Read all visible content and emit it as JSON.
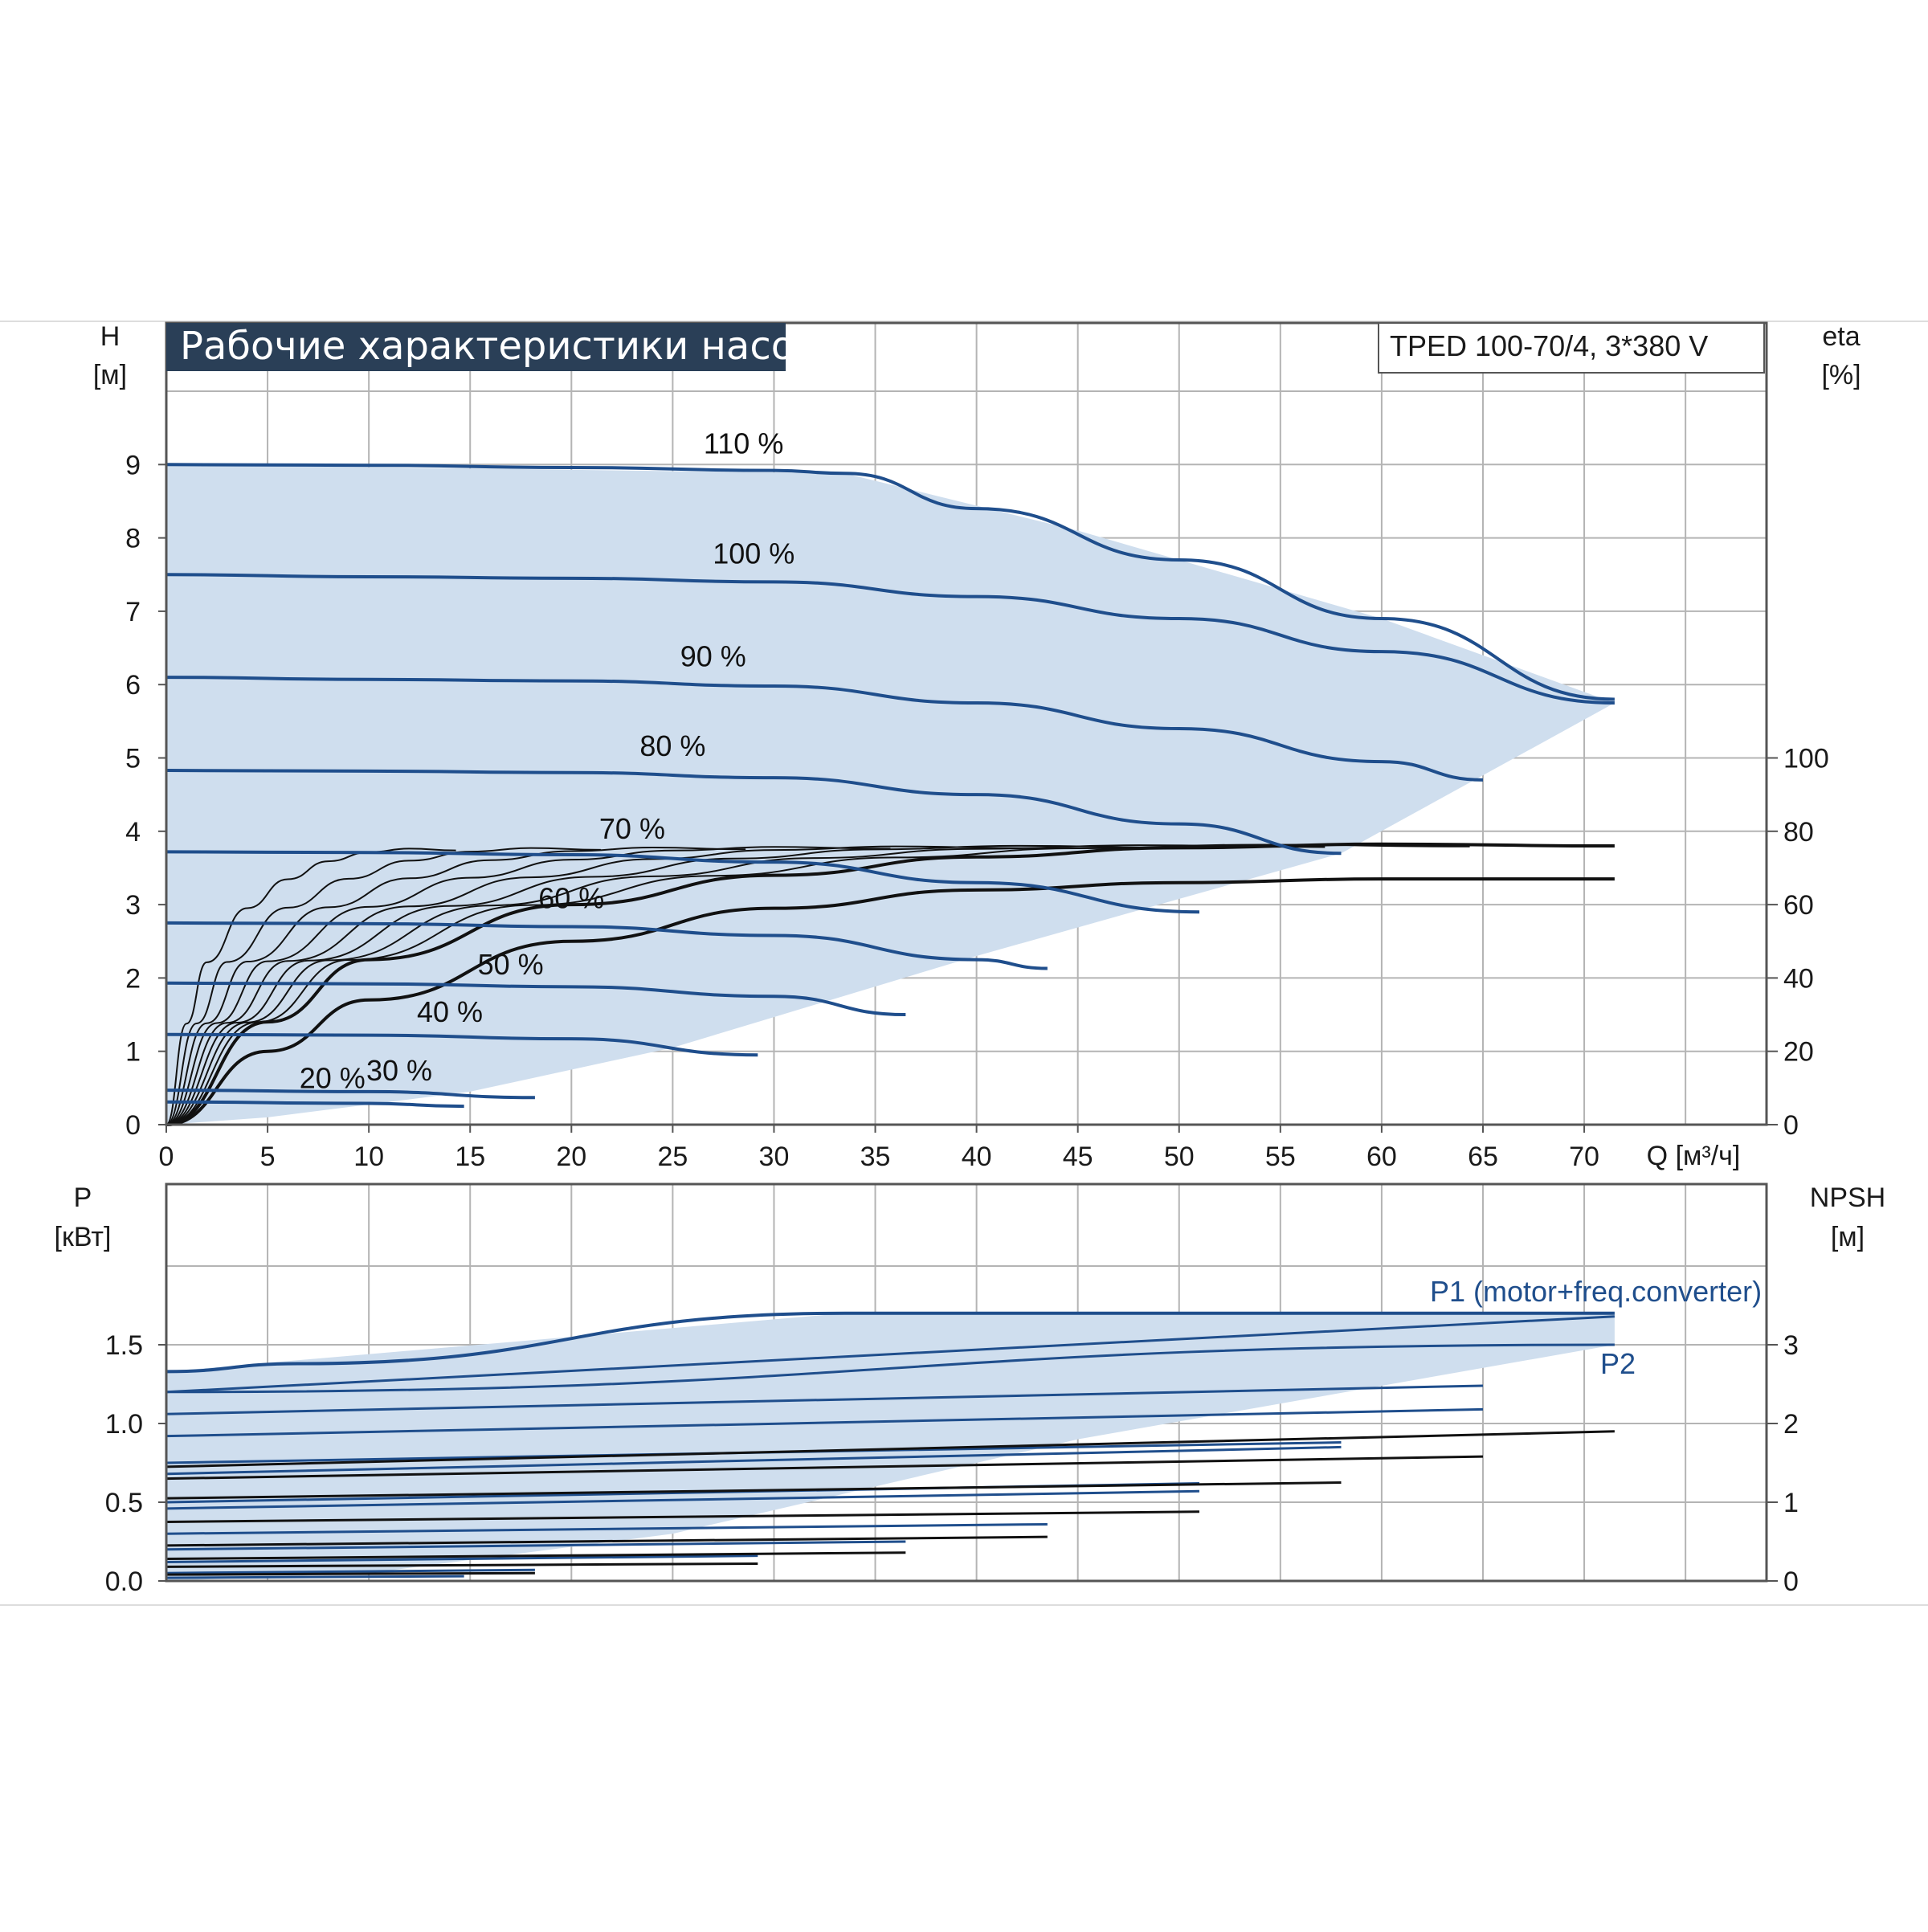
{
  "colors": {
    "curve": "#1f4e8c",
    "envelope": "#cfdeee",
    "envelope_light": "#eaf3fb",
    "grid": "#b4b4b4",
    "title_bg": "#2a3f57",
    "efficiency": "#111111"
  },
  "chart_data": [
    {
      "type": "line",
      "title": "Рабочие характеристики насоса",
      "model": "TPED 100-70/4, 3*380 V",
      "xlabel": "Q [м³/ч]",
      "ylabel": "H",
      "ylabel_unit": "[м]",
      "y2label": "eta",
      "y2label_unit": "[%]",
      "xlim": [
        0,
        79
      ],
      "ylim": [
        0,
        10
      ],
      "y2lim": [
        0,
        100
      ],
      "x_ticks": [
        "0",
        "5",
        "10",
        "15",
        "20",
        "25",
        "30",
        "35",
        "40",
        "45",
        "50",
        "55",
        "60",
        "65",
        "70"
      ],
      "y_ticks": [
        "0",
        "1",
        "2",
        "3",
        "4",
        "5",
        "6",
        "7",
        "8",
        "9"
      ],
      "y2_ticks": [
        "0",
        "20",
        "40",
        "60",
        "80",
        "100"
      ],
      "grid": true,
      "envelope": [
        [
          0,
          9.0
        ],
        [
          33.5,
          8.88
        ],
        [
          45,
          8.1
        ],
        [
          60,
          6.9
        ],
        [
          71.5,
          5.75
        ],
        [
          58,
          3.7
        ],
        [
          40,
          2.3
        ],
        [
          25,
          1.05
        ],
        [
          15,
          0.45
        ],
        [
          5,
          0.1
        ],
        [
          0,
          0
        ]
      ],
      "series": [
        {
          "name": "110 %",
          "x": [
            0,
            10,
            20,
            30,
            33.5,
            40,
            50,
            60,
            71.5
          ],
          "y": [
            9.0,
            8.99,
            8.96,
            8.92,
            8.88,
            8.4,
            7.7,
            6.9,
            5.8
          ]
        },
        {
          "name": "100 %",
          "x": [
            0,
            10,
            20,
            30,
            40,
            50,
            60,
            71.5
          ],
          "y": [
            7.5,
            7.47,
            7.45,
            7.4,
            7.2,
            6.9,
            6.45,
            5.75
          ]
        },
        {
          "name": "90 %",
          "x": [
            0,
            10,
            20,
            30,
            40,
            50,
            60,
            65
          ],
          "y": [
            6.1,
            6.07,
            6.05,
            5.98,
            5.75,
            5.4,
            4.95,
            4.7
          ]
        },
        {
          "name": "80 %",
          "x": [
            0,
            10,
            20,
            30,
            40,
            50,
            58
          ],
          "y": [
            4.83,
            4.82,
            4.8,
            4.73,
            4.5,
            4.1,
            3.7
          ]
        },
        {
          "name": "70 %",
          "x": [
            0,
            10,
            20,
            30,
            40,
            51
          ],
          "y": [
            3.72,
            3.71,
            3.68,
            3.58,
            3.3,
            2.9
          ]
        },
        {
          "name": "60 %",
          "x": [
            0,
            10,
            20,
            30,
            40,
            43.5
          ],
          "y": [
            2.75,
            2.74,
            2.7,
            2.58,
            2.25,
            2.13
          ]
        },
        {
          "name": "50 %",
          "x": [
            0,
            10,
            20,
            30,
            36.5
          ],
          "y": [
            1.93,
            1.92,
            1.88,
            1.75,
            1.5
          ]
        },
        {
          "name": "40 %",
          "x": [
            0,
            10,
            20,
            29.2
          ],
          "y": [
            1.23,
            1.22,
            1.17,
            0.95
          ]
        },
        {
          "name": "30 %",
          "x": [
            0,
            10,
            18.2
          ],
          "y": [
            0.47,
            0.45,
            0.37
          ]
        },
        {
          "name": "20 %",
          "x": [
            0,
            10,
            14.7
          ],
          "y": [
            0.31,
            0.29,
            0.25
          ]
        }
      ],
      "efficiency_series": [
        {
          "x": [
            0,
            5,
            10,
            20,
            30,
            40,
            50,
            60,
            71.5
          ],
          "y": [
            0,
            28,
            45,
            60,
            68,
            73,
            75.5,
            76.5,
            76
          ]
        },
        {
          "x": [
            0,
            5,
            10,
            20,
            30,
            40,
            50,
            60,
            71.5
          ],
          "y": [
            0,
            20,
            34,
            50,
            59,
            64,
            66,
            67,
            67
          ]
        }
      ]
    },
    {
      "type": "line",
      "xlim": [
        0,
        79
      ],
      "ylabel": "P",
      "ylabel_unit": "[кВт]",
      "y2label": "NPSH",
      "y2label_unit": "[м]",
      "ylim": [
        0,
        2.0
      ],
      "y2lim": [
        0,
        4
      ],
      "y_ticks": [
        "0.0",
        "0.5",
        "1.0",
        "1.5"
      ],
      "y2_ticks": [
        "0",
        "1",
        "2",
        "3"
      ],
      "grid": true,
      "envelope": [
        [
          0,
          1.33
        ],
        [
          33.5,
          1.7
        ],
        [
          71.5,
          1.7
        ],
        [
          71.5,
          1.5
        ],
        [
          45,
          0.9
        ],
        [
          25,
          0.3
        ],
        [
          10,
          0.05
        ],
        [
          0,
          0
        ]
      ],
      "series": [
        {
          "name": "P1 (motor+freq.converter)",
          "x": [
            0,
            6.5,
            33.5,
            71.5
          ],
          "y": [
            1.33,
            1.38,
            1.7,
            1.7
          ]
        },
        {
          "name": "P2",
          "x": [
            0,
            71.5
          ],
          "y": [
            1.2,
            1.5
          ]
        }
      ],
      "power_curves": [
        {
          "x": [
            0,
            71.5
          ],
          "y": [
            1.2,
            1.68
          ]
        },
        {
          "x": [
            0,
            65
          ],
          "y": [
            1.06,
            1.24
          ]
        },
        {
          "x": [
            0,
            65
          ],
          "y": [
            0.92,
            1.09
          ]
        },
        {
          "x": [
            0,
            58
          ],
          "y": [
            0.75,
            0.88
          ]
        },
        {
          "x": [
            0,
            58
          ],
          "y": [
            0.68,
            0.85
          ]
        },
        {
          "x": [
            0,
            51
          ],
          "y": [
            0.5,
            0.62
          ]
        },
        {
          "x": [
            0,
            51
          ],
          "y": [
            0.46,
            0.57
          ]
        },
        {
          "x": [
            0,
            43.5
          ],
          "y": [
            0.3,
            0.36
          ]
        },
        {
          "x": [
            0,
            36.5
          ],
          "y": [
            0.2,
            0.25
          ]
        },
        {
          "x": [
            0,
            29.2
          ],
          "y": [
            0.12,
            0.16
          ]
        },
        {
          "x": [
            0,
            18.2
          ],
          "y": [
            0.05,
            0.07
          ]
        },
        {
          "x": [
            0,
            14.7
          ],
          "y": [
            0.02,
            0.03
          ]
        }
      ],
      "npsh_curves": [
        {
          "x": [
            0,
            71.5
          ],
          "y": [
            1.45,
            1.9
          ]
        },
        {
          "x": [
            0,
            65
          ],
          "y": [
            1.3,
            1.58
          ]
        },
        {
          "x": [
            0,
            58
          ],
          "y": [
            1.05,
            1.25
          ]
        },
        {
          "x": [
            0,
            51
          ],
          "y": [
            0.75,
            0.88
          ]
        },
        {
          "x": [
            0,
            43.5
          ],
          "y": [
            0.45,
            0.56
          ]
        },
        {
          "x": [
            0,
            36.5
          ],
          "y": [
            0.28,
            0.36
          ]
        },
        {
          "x": [
            0,
            29.2
          ],
          "y": [
            0.18,
            0.22
          ]
        },
        {
          "x": [
            0,
            18.2
          ],
          "y": [
            0.08,
            0.1
          ]
        }
      ]
    }
  ]
}
